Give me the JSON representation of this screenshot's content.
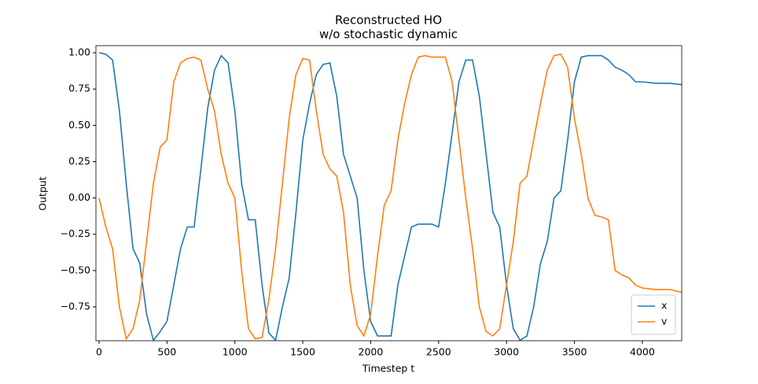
{
  "chart_data": {
    "type": "line",
    "title": "Reconstructed HO",
    "subtitle": "w/o stochastic dynamic",
    "x_label": "Timestep t",
    "y_label": "Output",
    "x": [
      0,
      50,
      100,
      150,
      200,
      250,
      300,
      350,
      400,
      450,
      500,
      550,
      600,
      650,
      700,
      750,
      800,
      850,
      900,
      950,
      1000,
      1050,
      1100,
      1150,
      1200,
      1250,
      1300,
      1350,
      1400,
      1450,
      1500,
      1550,
      1600,
      1650,
      1700,
      1750,
      1800,
      1850,
      1900,
      1950,
      2000,
      2050,
      2100,
      2150,
      2200,
      2250,
      2300,
      2350,
      2400,
      2450,
      2500,
      2550,
      2600,
      2650,
      2700,
      2750,
      2800,
      2850,
      2900,
      2950,
      3000,
      3050,
      3100,
      3150,
      3200,
      3250,
      3300,
      3350,
      3400,
      3450,
      3500,
      3550,
      3600,
      3650,
      3700,
      3750,
      3800,
      3850,
      3900,
      3950,
      4000,
      4100,
      4200,
      4290
    ],
    "series": [
      {
        "name": "x",
        "color": "#1f77b4",
        "values": [
          1.0,
          0.99,
          0.95,
          0.6,
          0.1,
          -0.35,
          -0.45,
          -0.8,
          -0.98,
          -0.92,
          -0.85,
          -0.6,
          -0.35,
          -0.2,
          -0.2,
          0.2,
          0.62,
          0.88,
          0.98,
          0.93,
          0.6,
          0.1,
          -0.15,
          -0.15,
          -0.6,
          -0.93,
          -0.98,
          -0.75,
          -0.55,
          -0.1,
          0.4,
          0.65,
          0.85,
          0.92,
          0.93,
          0.7,
          0.3,
          0.15,
          0.0,
          -0.5,
          -0.85,
          -0.95,
          -0.95,
          -0.95,
          -0.6,
          -0.4,
          -0.2,
          -0.18,
          -0.18,
          -0.18,
          -0.2,
          0.1,
          0.45,
          0.8,
          0.95,
          0.95,
          0.7,
          0.3,
          -0.1,
          -0.2,
          -0.6,
          -0.9,
          -0.98,
          -0.95,
          -0.75,
          -0.45,
          -0.3,
          0.0,
          0.05,
          0.4,
          0.8,
          0.97,
          0.98,
          0.98,
          0.98,
          0.95,
          0.9,
          0.88,
          0.85,
          0.8,
          0.8,
          0.79,
          0.79,
          0.78
        ]
      },
      {
        "name": "v",
        "color": "#ff7f0e",
        "values": [
          0.0,
          -0.2,
          -0.35,
          -0.75,
          -0.97,
          -0.9,
          -0.7,
          -0.3,
          0.1,
          0.35,
          0.4,
          0.8,
          0.93,
          0.96,
          0.97,
          0.95,
          0.75,
          0.6,
          0.3,
          0.1,
          0.0,
          -0.5,
          -0.9,
          -0.97,
          -0.96,
          -0.7,
          -0.35,
          0.1,
          0.55,
          0.85,
          0.96,
          0.95,
          0.6,
          0.3,
          0.2,
          0.15,
          -0.1,
          -0.6,
          -0.88,
          -0.95,
          -0.8,
          -0.4,
          -0.05,
          0.05,
          0.4,
          0.65,
          0.85,
          0.97,
          0.98,
          0.97,
          0.97,
          0.97,
          0.8,
          0.4,
          0.0,
          -0.35,
          -0.75,
          -0.92,
          -0.95,
          -0.9,
          -0.6,
          -0.3,
          0.1,
          0.15,
          0.4,
          0.65,
          0.88,
          0.98,
          0.99,
          0.9,
          0.55,
          0.3,
          0.0,
          -0.12,
          -0.13,
          -0.15,
          -0.5,
          -0.53,
          -0.55,
          -0.6,
          -0.62,
          -0.63,
          -0.63,
          -0.65
        ]
      }
    ],
    "xlim": [
      -23,
      4290
    ],
    "ylim": [
      -0.983,
      1.049
    ],
    "xticks": [
      0,
      500,
      1000,
      1500,
      2000,
      2500,
      3000,
      3500,
      4000
    ],
    "yticks": [
      {
        "value": -0.75,
        "label": "−0.75"
      },
      {
        "value": -0.5,
        "label": "−0.50"
      },
      {
        "value": -0.25,
        "label": "−0.25"
      },
      {
        "value": 0,
        "label": "0.00"
      },
      {
        "value": 0.25,
        "label": "0.25"
      },
      {
        "value": 0.5,
        "label": "0.50"
      },
      {
        "value": 0.75,
        "label": "0.75"
      },
      {
        "value": 1,
        "label": "1.00"
      }
    ],
    "legend": "lower right"
  }
}
